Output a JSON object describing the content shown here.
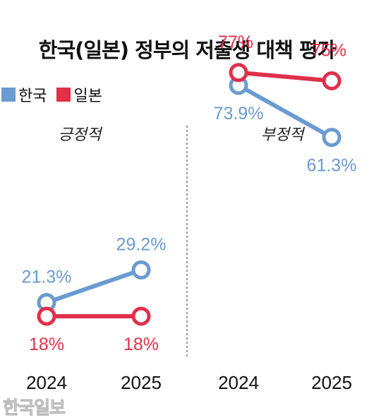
{
  "title": {
    "main": "한국(일본) 정부의 저출생 대책 평가"
  },
  "watermark": "한국일보",
  "chart_data": {
    "type": "line",
    "title": "한국(일본) 정부의 저출생 대책 평가",
    "legend": {
      "position": "top-left",
      "entries": [
        "한국",
        "일본"
      ]
    },
    "categories": [
      "2024",
      "2025"
    ],
    "grid": false,
    "panels": [
      {
        "label": "긍정적",
        "ylim": [
          0,
          100
        ],
        "series": [
          {
            "name": "한국",
            "color": "#6a9bd1",
            "values": [
              21.3,
              29.2
            ],
            "labels": [
              "21.3%",
              "29.2%"
            ]
          },
          {
            "name": "일본",
            "color": "#e0304a",
            "values": [
              18,
              18
            ],
            "labels": [
              "18%",
              "18%"
            ]
          }
        ]
      },
      {
        "label": "부정적",
        "ylim": [
          0,
          100
        ],
        "series": [
          {
            "name": "한국",
            "color": "#6a9bd1",
            "values": [
              73.9,
              61.3
            ],
            "labels": [
              "73.9%",
              "61.3%"
            ]
          },
          {
            "name": "일본",
            "color": "#e0304a",
            "values": [
              77,
              75
            ],
            "labels": [
              "77%",
              "75%"
            ]
          }
        ]
      }
    ]
  }
}
